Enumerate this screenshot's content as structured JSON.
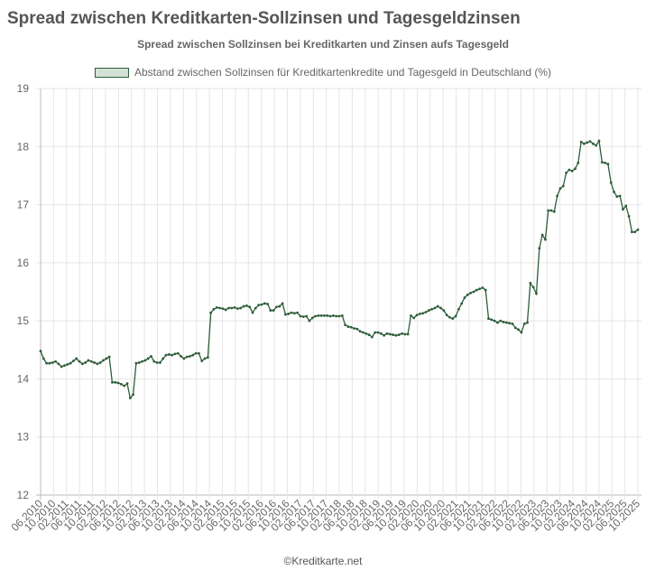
{
  "header": {
    "title": "Spread zwischen Kreditkarten-Sollzinsen und Tagesgeldzinsen"
  },
  "footer": {
    "credit": "©Kreditkarte.net"
  },
  "colors": {
    "line": "#2e5e3a",
    "legend_fill": "#d4e2d6",
    "grid": "#e5e5e5",
    "axis": "#bbbbbb",
    "text": "#666666"
  },
  "chart_data": {
    "type": "line",
    "title": "Spread zwischen Sollzinsen bei Kreditkarten und Zinsen aufs Tagesgeld",
    "xlabel": "",
    "ylabel": "",
    "ylim": [
      12,
      19
    ],
    "yticks": [
      12,
      13,
      14,
      15,
      16,
      17,
      18,
      19
    ],
    "grid": true,
    "legend_position": "top",
    "x_tick_labels": [
      "06.2010",
      "10.2010",
      "02.2011",
      "06.2011",
      "10.2011",
      "02.2012",
      "06.2012",
      "10.2012",
      "02.2013",
      "06.2013",
      "10.2013",
      "02.2014",
      "06.2014",
      "10.2014",
      "02.2015",
      "06.2015",
      "10.2015",
      "02.2016",
      "06.2016",
      "10.2016",
      "02.2017",
      "06.2017",
      "10.2017",
      "02.2018",
      "06.2018",
      "10.2018",
      "02.2019",
      "06.2019",
      "10.2019",
      "02.2020",
      "06.2020",
      "10.2020",
      "02.2021",
      "06.2021",
      "10.2021",
      "02.2022",
      "06.2022",
      "10.2022",
      "02.2023",
      "06.2023",
      "10.2023",
      "02.2024",
      "06.2024",
      "10.2024",
      "02.2025",
      "06.2025",
      "10.2025"
    ],
    "x_start": "06.2010",
    "x_end": "10.2025",
    "x_step": "1 month",
    "series": [
      {
        "name": "Abstand zwischen Sollzinsen für Kreditkartenkredite und Tagesgeld in Deutschland (%)",
        "values": [
          14.48,
          14.35,
          14.27,
          14.27,
          14.28,
          14.3,
          14.26,
          14.21,
          14.23,
          14.25,
          14.27,
          14.31,
          14.35,
          14.3,
          14.26,
          14.28,
          14.32,
          14.3,
          14.28,
          14.26,
          14.28,
          14.32,
          14.35,
          14.38,
          13.94,
          13.94,
          13.93,
          13.91,
          13.88,
          13.92,
          13.67,
          13.73,
          14.27,
          14.28,
          14.3,
          14.32,
          14.35,
          14.39,
          14.3,
          14.28,
          14.28,
          14.35,
          14.41,
          14.42,
          14.41,
          14.43,
          14.44,
          14.39,
          14.35,
          14.38,
          14.39,
          14.41,
          14.44,
          14.44,
          14.31,
          14.35,
          14.37,
          15.14,
          15.2,
          15.23,
          15.22,
          15.21,
          15.19,
          15.22,
          15.22,
          15.23,
          15.21,
          15.22,
          15.25,
          15.26,
          15.24,
          15.14,
          15.22,
          15.27,
          15.28,
          15.3,
          15.29,
          15.18,
          15.18,
          15.24,
          15.25,
          15.3,
          15.11,
          15.12,
          15.14,
          15.13,
          15.14,
          15.08,
          15.07,
          15.08,
          15.0,
          15.05,
          15.08,
          15.09,
          15.09,
          15.09,
          15.09,
          15.08,
          15.09,
          15.08,
          15.08,
          15.09,
          14.93,
          14.9,
          14.89,
          14.87,
          14.86,
          14.82,
          14.8,
          14.78,
          14.76,
          14.72,
          14.8,
          14.8,
          14.78,
          14.75,
          14.78,
          14.77,
          14.76,
          14.75,
          14.76,
          14.78,
          14.77,
          14.77,
          15.09,
          15.05,
          15.1,
          15.12,
          15.13,
          15.15,
          15.18,
          15.2,
          15.22,
          15.25,
          15.22,
          15.18,
          15.1,
          15.06,
          15.04,
          15.08,
          15.2,
          15.3,
          15.4,
          15.45,
          15.48,
          15.5,
          15.53,
          15.55,
          15.57,
          15.53,
          15.04,
          15.02,
          15.0,
          14.97,
          15.0,
          14.98,
          14.97,
          14.96,
          14.95,
          14.88,
          14.85,
          14.8,
          14.95,
          14.97,
          15.65,
          15.58,
          15.47,
          16.25,
          16.48,
          16.4,
          16.9,
          16.9,
          16.88,
          17.15,
          17.28,
          17.32,
          17.55,
          17.6,
          17.58,
          17.62,
          17.72,
          18.08,
          18.05,
          18.07,
          18.09,
          18.05,
          18.02,
          18.1,
          17.73,
          17.72,
          17.7,
          17.38,
          17.22,
          17.14,
          17.15,
          16.92,
          16.98,
          16.8,
          16.53,
          16.53,
          16.57
        ]
      }
    ]
  }
}
